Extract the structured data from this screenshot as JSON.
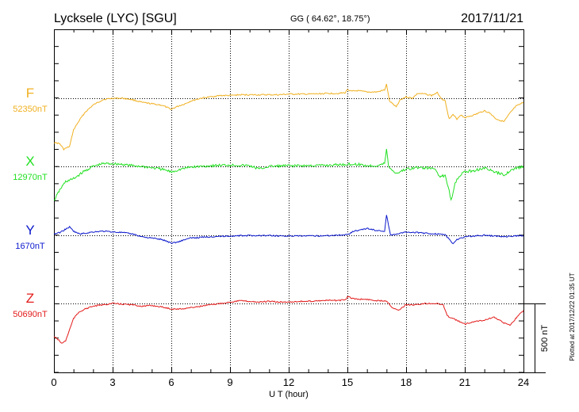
{
  "header": {
    "station": "Lycksele (LYC)  [SGU]",
    "coords": "GG ( 64.62°,  18.75°)",
    "date": "2017/11/21"
  },
  "side_note": "Plotted at 2017/12/22 01:35 UT",
  "scale_label": "500 nT",
  "chart_data": {
    "type": "line",
    "xlabel": "U T (hour)",
    "xlim": [
      0,
      24
    ],
    "x_ticks": [
      "0",
      "3",
      "6",
      "9",
      "12",
      "15",
      "18",
      "21",
      "24"
    ],
    "scale_bar_nT": 500,
    "series": [
      {
        "name": "F",
        "baseline_label": "52350nT",
        "baseline_nT": 52350,
        "color": "#f0b020",
        "x": [
          0,
          0.3,
          0.5,
          0.8,
          1.0,
          1.3,
          1.6,
          2.0,
          2.5,
          3.0,
          3.5,
          4.0,
          4.5,
          5.0,
          5.5,
          6.0,
          6.3,
          6.7,
          7.0,
          7.5,
          8.0,
          8.5,
          9.0,
          9.5,
          10.0,
          10.5,
          11.0,
          11.5,
          12.0,
          12.5,
          13.0,
          13.5,
          14.0,
          14.5,
          14.9,
          15.0,
          15.2,
          15.5,
          16.0,
          16.5,
          16.9,
          17.0,
          17.15,
          17.3,
          17.5,
          17.7,
          18.0,
          18.3,
          18.6,
          19.0,
          19.3,
          19.6,
          19.8,
          20.0,
          20.2,
          20.4,
          20.6,
          20.8,
          21.0,
          21.5,
          22.0,
          22.3,
          22.6,
          23.0,
          23.3,
          23.6,
          24.0
        ],
        "values": [
          52030,
          52020,
          51980,
          52000,
          52120,
          52190,
          52250,
          52300,
          52340,
          52350,
          52350,
          52340,
          52320,
          52310,
          52300,
          52270,
          52290,
          52310,
          52330,
          52350,
          52360,
          52370,
          52370,
          52375,
          52375,
          52375,
          52375,
          52375,
          52380,
          52380,
          52380,
          52382,
          52385,
          52385,
          52390,
          52415,
          52400,
          52405,
          52395,
          52395,
          52410,
          52450,
          52330,
          52310,
          52290,
          52340,
          52360,
          52350,
          52385,
          52380,
          52370,
          52390,
          52350,
          52330,
          52200,
          52230,
          52200,
          52230,
          52210,
          52230,
          52260,
          52240,
          52200,
          52180,
          52240,
          52290,
          52320
        ]
      },
      {
        "name": "X",
        "baseline_label": "12970nT",
        "baseline_nT": 12970,
        "color": "#22e022",
        "x": [
          0,
          0.3,
          0.6,
          1.0,
          1.5,
          2.0,
          2.5,
          3.0,
          3.5,
          4.0,
          4.5,
          5.0,
          5.5,
          6.0,
          6.5,
          7.0,
          8.0,
          9.0,
          10.0,
          10.5,
          11.0,
          12.0,
          13.0,
          14.0,
          15.0,
          15.5,
          16.0,
          16.5,
          16.9,
          17.0,
          17.1,
          17.3,
          17.5,
          18.0,
          18.5,
          19.0,
          19.5,
          19.7,
          20.0,
          20.2,
          20.3,
          20.5,
          20.7,
          21.0,
          21.5,
          22.0,
          22.5,
          23.0,
          23.5,
          24.0
        ],
        "values": [
          12720,
          12800,
          12860,
          12880,
          12930,
          12970,
          12990,
          12990,
          12985,
          12975,
          12970,
          12960,
          12950,
          12930,
          12950,
          12965,
          12975,
          12980,
          12975,
          12950,
          12970,
          12975,
          12975,
          12978,
          12985,
          12985,
          12975,
          12975,
          12990,
          13100,
          12970,
          12940,
          12920,
          12950,
          12960,
          12960,
          12950,
          12900,
          12900,
          12800,
          12720,
          12850,
          12900,
          12930,
          12940,
          12960,
          12930,
          12910,
          12950,
          12970
        ]
      },
      {
        "name": "Y",
        "baseline_label": "1670nT",
        "baseline_nT": 1670,
        "color": "#0b18cc",
        "x": [
          0,
          0.3,
          0.6,
          0.8,
          1.0,
          1.3,
          1.6,
          2.0,
          2.5,
          3.0,
          3.5,
          4.0,
          4.5,
          5.0,
          5.5,
          6.0,
          6.3,
          6.7,
          7.0,
          8.0,
          9.0,
          10.0,
          11.0,
          12.0,
          13.0,
          14.0,
          15.0,
          15.3,
          15.7,
          16.0,
          16.5,
          16.9,
          17.0,
          17.2,
          17.5,
          18.0,
          18.5,
          19.0,
          19.5,
          20.0,
          20.2,
          20.4,
          20.6,
          21.0,
          21.5,
          22.0,
          22.5,
          23.0,
          23.5,
          24.0
        ],
        "values": [
          1680,
          1690,
          1715,
          1730,
          1700,
          1680,
          1685,
          1695,
          1700,
          1695,
          1690,
          1680,
          1660,
          1650,
          1640,
          1615,
          1620,
          1640,
          1650,
          1660,
          1665,
          1668,
          1668,
          1665,
          1665,
          1668,
          1675,
          1700,
          1710,
          1720,
          1705,
          1700,
          1820,
          1670,
          1680,
          1695,
          1690,
          1685,
          1680,
          1675,
          1640,
          1610,
          1640,
          1660,
          1665,
          1670,
          1665,
          1660,
          1665,
          1668
        ]
      },
      {
        "name": "Z",
        "baseline_label": "50690nT",
        "baseline_nT": 50690,
        "color": "#e31b1b",
        "x": [
          0,
          0.2,
          0.4,
          0.6,
          0.8,
          1.0,
          1.3,
          1.6,
          2.0,
          2.5,
          3.0,
          3.5,
          4.0,
          4.5,
          5.0,
          5.5,
          6.0,
          6.5,
          7.0,
          7.5,
          8.0,
          8.5,
          9.0,
          9.5,
          10.0,
          10.5,
          11.0,
          11.5,
          12.0,
          12.5,
          13.0,
          13.5,
          14.0,
          14.5,
          14.9,
          15.0,
          15.3,
          15.7,
          16.0,
          16.5,
          17.0,
          17.3,
          17.6,
          17.8,
          18.0,
          18.5,
          19.0,
          19.5,
          19.9,
          20.1,
          20.4,
          20.7,
          21.0,
          21.5,
          22.0,
          22.5,
          23.0,
          23.3,
          23.6,
          24.0
        ],
        "values": [
          50450,
          50430,
          50400,
          50420,
          50500,
          50580,
          50630,
          50650,
          50670,
          50680,
          50690,
          50685,
          50680,
          50670,
          50675,
          50665,
          50650,
          50650,
          50660,
          50670,
          50680,
          50690,
          50700,
          50710,
          50705,
          50700,
          50705,
          50700,
          50700,
          50705,
          50705,
          50710,
          50712,
          50712,
          50715,
          50740,
          50725,
          50720,
          50720,
          50710,
          50710,
          50660,
          50640,
          50660,
          50680,
          50680,
          50690,
          50690,
          50680,
          50600,
          50580,
          50560,
          50540,
          50560,
          50570,
          50590,
          50550,
          50530,
          50580,
          50640
        ]
      }
    ]
  }
}
